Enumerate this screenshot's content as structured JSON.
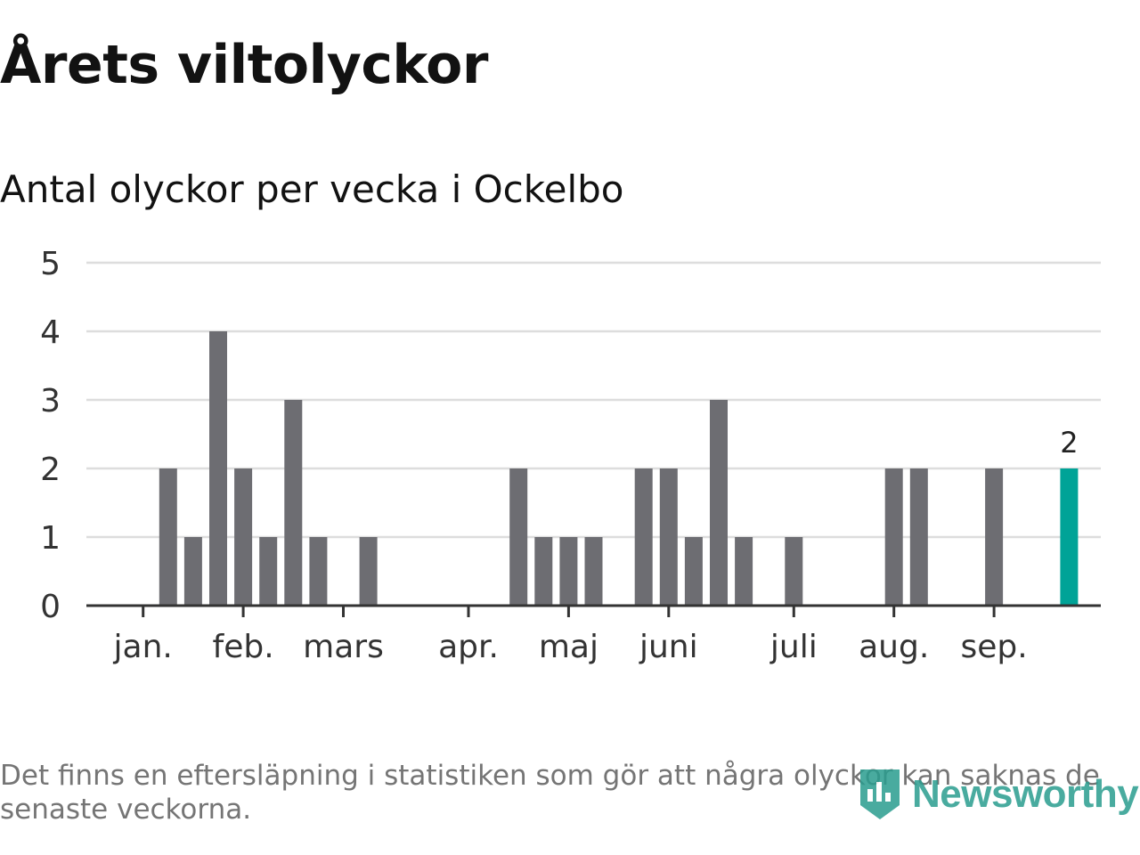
{
  "title": "Årets viltolyckor",
  "subtitle": "Antal olyckor per vecka i Ockelbo",
  "footnote": "Det finns en eftersläpning i statistiken som gör att några olyckor kan saknas de senaste veckorna.",
  "logo": {
    "text": "Newsworthy",
    "icon": "bar-chart-icon"
  },
  "colors": {
    "bar": "#6d6d72",
    "highlight": "#00a397",
    "grid": "#dddddd",
    "axis": "#333333"
  },
  "chart_data": {
    "type": "bar",
    "title": "Antal olyckor per vecka i Ockelbo",
    "xlabel": "",
    "ylabel": "",
    "ylim": [
      0,
      5
    ],
    "yticks": [
      0,
      1,
      2,
      3,
      4,
      5
    ],
    "grid": true,
    "month_ticks": [
      {
        "label": "jan.",
        "week": 1
      },
      {
        "label": "feb.",
        "week": 5
      },
      {
        "label": "mars",
        "week": 9
      },
      {
        "label": "apr.",
        "week": 14
      },
      {
        "label": "maj",
        "week": 18
      },
      {
        "label": "juni",
        "week": 22
      },
      {
        "label": "juli",
        "week": 27
      },
      {
        "label": "aug.",
        "week": 31
      },
      {
        "label": "sep.",
        "week": 35
      }
    ],
    "weeks": [
      1,
      2,
      3,
      4,
      5,
      6,
      7,
      8,
      9,
      10,
      11,
      12,
      13,
      14,
      15,
      16,
      17,
      18,
      19,
      20,
      21,
      22,
      23,
      24,
      25,
      26,
      27,
      28,
      29,
      30,
      31,
      32,
      33,
      34,
      35,
      36,
      37,
      38,
      39,
      40,
      41
    ],
    "values": [
      0,
      2,
      1,
      4,
      2,
      1,
      3,
      1,
      0,
      1,
      0,
      0,
      0,
      0,
      0,
      2,
      1,
      1,
      1,
      0,
      2,
      2,
      1,
      3,
      1,
      0,
      1,
      0,
      0,
      0,
      2,
      2,
      0,
      0,
      2,
      0,
      0,
      2,
      0,
      0,
      0
    ],
    "highlight": {
      "week": 38,
      "value": 2,
      "label": "2"
    }
  }
}
